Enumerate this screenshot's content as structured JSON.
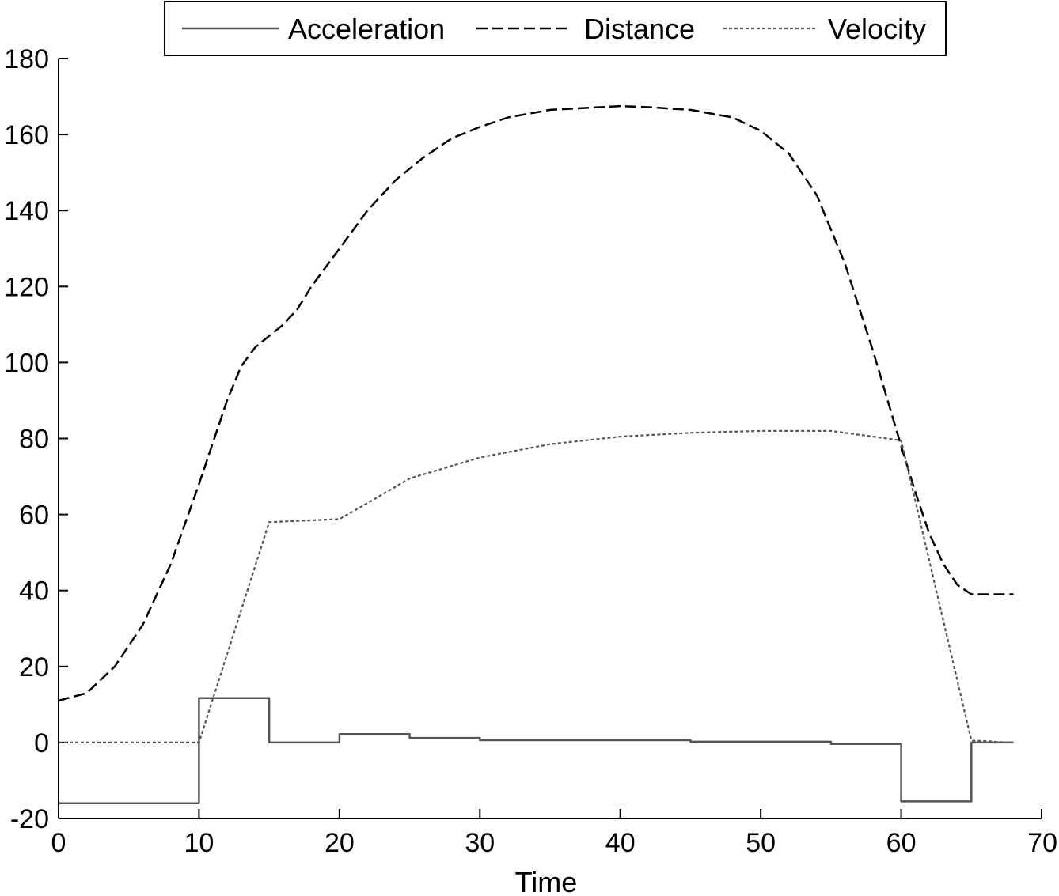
{
  "chart_data": {
    "type": "line",
    "title": "",
    "xlabel": "Time",
    "ylabel": "",
    "xlim": [
      0,
      70
    ],
    "ylim": [
      -20,
      180
    ],
    "x_ticks": [
      0,
      10,
      20,
      30,
      40,
      50,
      60,
      70
    ],
    "y_ticks": [
      -20,
      0,
      20,
      40,
      60,
      80,
      100,
      120,
      140,
      160,
      180
    ],
    "x_tick_labels": [
      "0",
      "10",
      "20",
      "30",
      "40",
      "50",
      "60",
      "70"
    ],
    "y_tick_labels": [
      "-20",
      "0",
      "20",
      "40",
      "60",
      "80",
      "100",
      "120",
      "140",
      "160",
      "180"
    ],
    "grid": false,
    "legend_position": "top",
    "series": [
      {
        "name": "Acceleration",
        "style": "solid",
        "color": "#555555",
        "points": [
          [
            0,
            -16
          ],
          [
            10,
            -16
          ],
          [
            10,
            11.7
          ],
          [
            15,
            11.7
          ],
          [
            15,
            0
          ],
          [
            20,
            0
          ],
          [
            20,
            2.2
          ],
          [
            25,
            2.2
          ],
          [
            25,
            1.2
          ],
          [
            30,
            1.2
          ],
          [
            30,
            0.6
          ],
          [
            45,
            0.6
          ],
          [
            45,
            0.2
          ],
          [
            55,
            0.2
          ],
          [
            55,
            -0.4
          ],
          [
            60,
            -0.4
          ],
          [
            60,
            -15.5
          ],
          [
            65,
            -15.5
          ],
          [
            65,
            0
          ],
          [
            68,
            0
          ]
        ]
      },
      {
        "name": "Distance",
        "style": "dashed",
        "color": "#000000",
        "points": [
          [
            0,
            11
          ],
          [
            2,
            13
          ],
          [
            4,
            20
          ],
          [
            6,
            31
          ],
          [
            8,
            47
          ],
          [
            10,
            68
          ],
          [
            12,
            90
          ],
          [
            13,
            99
          ],
          [
            14,
            104
          ],
          [
            15,
            107
          ],
          [
            16,
            110
          ],
          [
            17,
            114
          ],
          [
            18,
            120
          ],
          [
            20,
            130
          ],
          [
            22,
            140
          ],
          [
            24,
            148
          ],
          [
            26,
            154
          ],
          [
            28,
            159
          ],
          [
            30,
            162
          ],
          [
            32,
            164.5
          ],
          [
            35,
            166.5
          ],
          [
            40,
            167.5
          ],
          [
            42,
            167.2
          ],
          [
            45,
            166.5
          ],
          [
            48,
            164.5
          ],
          [
            50,
            161
          ],
          [
            52,
            155
          ],
          [
            54,
            144
          ],
          [
            56,
            126
          ],
          [
            58,
            103
          ],
          [
            60,
            78
          ],
          [
            61,
            66
          ],
          [
            62,
            55
          ],
          [
            63,
            47
          ],
          [
            64,
            41.5
          ],
          [
            65,
            39
          ],
          [
            66,
            39
          ],
          [
            68,
            39
          ]
        ]
      },
      {
        "name": "Velocity",
        "style": "dotted",
        "color": "#555555",
        "points": [
          [
            0,
            0
          ],
          [
            10,
            0
          ],
          [
            15,
            58
          ],
          [
            20,
            58.8
          ],
          [
            22,
            63
          ],
          [
            25,
            69.5
          ],
          [
            30,
            75
          ],
          [
            35,
            78.5
          ],
          [
            40,
            80.5
          ],
          [
            45,
            81.5
          ],
          [
            50,
            82
          ],
          [
            55,
            82
          ],
          [
            58,
            80.5
          ],
          [
            60,
            79.5
          ],
          [
            65,
            0.5
          ],
          [
            66,
            0.4
          ],
          [
            67,
            0.1
          ],
          [
            68,
            0
          ]
        ]
      }
    ]
  }
}
